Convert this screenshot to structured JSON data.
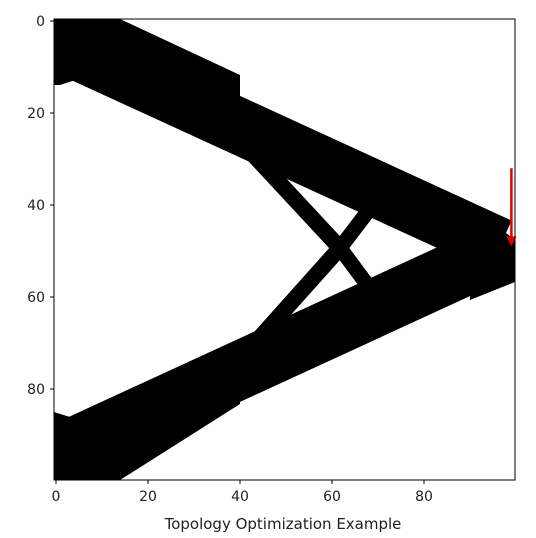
{
  "figure": {
    "xlabel": "Topology Optimization Example",
    "x_ticks": [
      "0",
      "20",
      "40",
      "60",
      "80"
    ],
    "y_ticks": [
      "0",
      "20",
      "40",
      "60",
      "80"
    ]
  },
  "chart_data": {
    "type": "heatmap",
    "xlabel": "Topology Optimization Example",
    "ylabel": "",
    "xlim": [
      0,
      100
    ],
    "ylim": [
      100,
      0
    ],
    "y_inverted": true,
    "x_tick_values": [
      0,
      20,
      40,
      60,
      80
    ],
    "y_tick_values": [
      0,
      20,
      40,
      60,
      80
    ],
    "grid": false,
    "colormap": "binary",
    "material_color": "#000000",
    "void_color": "#ffffff",
    "load_arrow": {
      "color": "#e00000",
      "direction": "down",
      "x": 99,
      "y_start": 32,
      "y_end": 49
    }
  }
}
